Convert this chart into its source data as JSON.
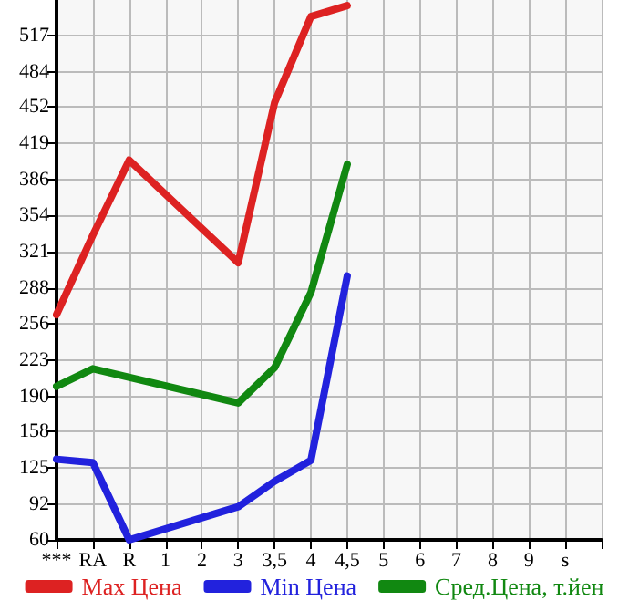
{
  "chart_data": {
    "type": "line",
    "categories": [
      "***",
      "RA",
      "R",
      "1",
      "2",
      "3",
      "3,5",
      "4",
      "4,5",
      "5",
      "6",
      "7",
      "8",
      "9",
      "s",
      null
    ],
    "series": [
      {
        "name": "Max Цена",
        "color": "#dd2222",
        "values": [
          264,
          336,
          404,
          null,
          null,
          311,
          456,
          534,
          544,
          null,
          null,
          null,
          null,
          null,
          null,
          null
        ]
      },
      {
        "name": "Min Цена",
        "color": "#2222dd",
        "values": [
          133,
          130,
          60,
          null,
          null,
          90,
          113,
          132,
          299,
          null,
          null,
          null,
          null,
          null,
          null,
          null
        ]
      },
      {
        "name": "Сред.Цена, т.йен",
        "color": "#118811",
        "values": [
          199,
          215,
          null,
          null,
          null,
          184,
          216,
          284,
          400,
          null,
          null,
          null,
          null,
          null,
          null,
          null
        ]
      }
    ],
    "ylim": [
      60,
      549
    ],
    "yticks": [
      60,
      92,
      125,
      158,
      190,
      223,
      256,
      288,
      321,
      354,
      386,
      419,
      452,
      484,
      517
    ],
    "grid": true,
    "legend": "bottom",
    "marker": "none",
    "line_style": "solid"
  }
}
